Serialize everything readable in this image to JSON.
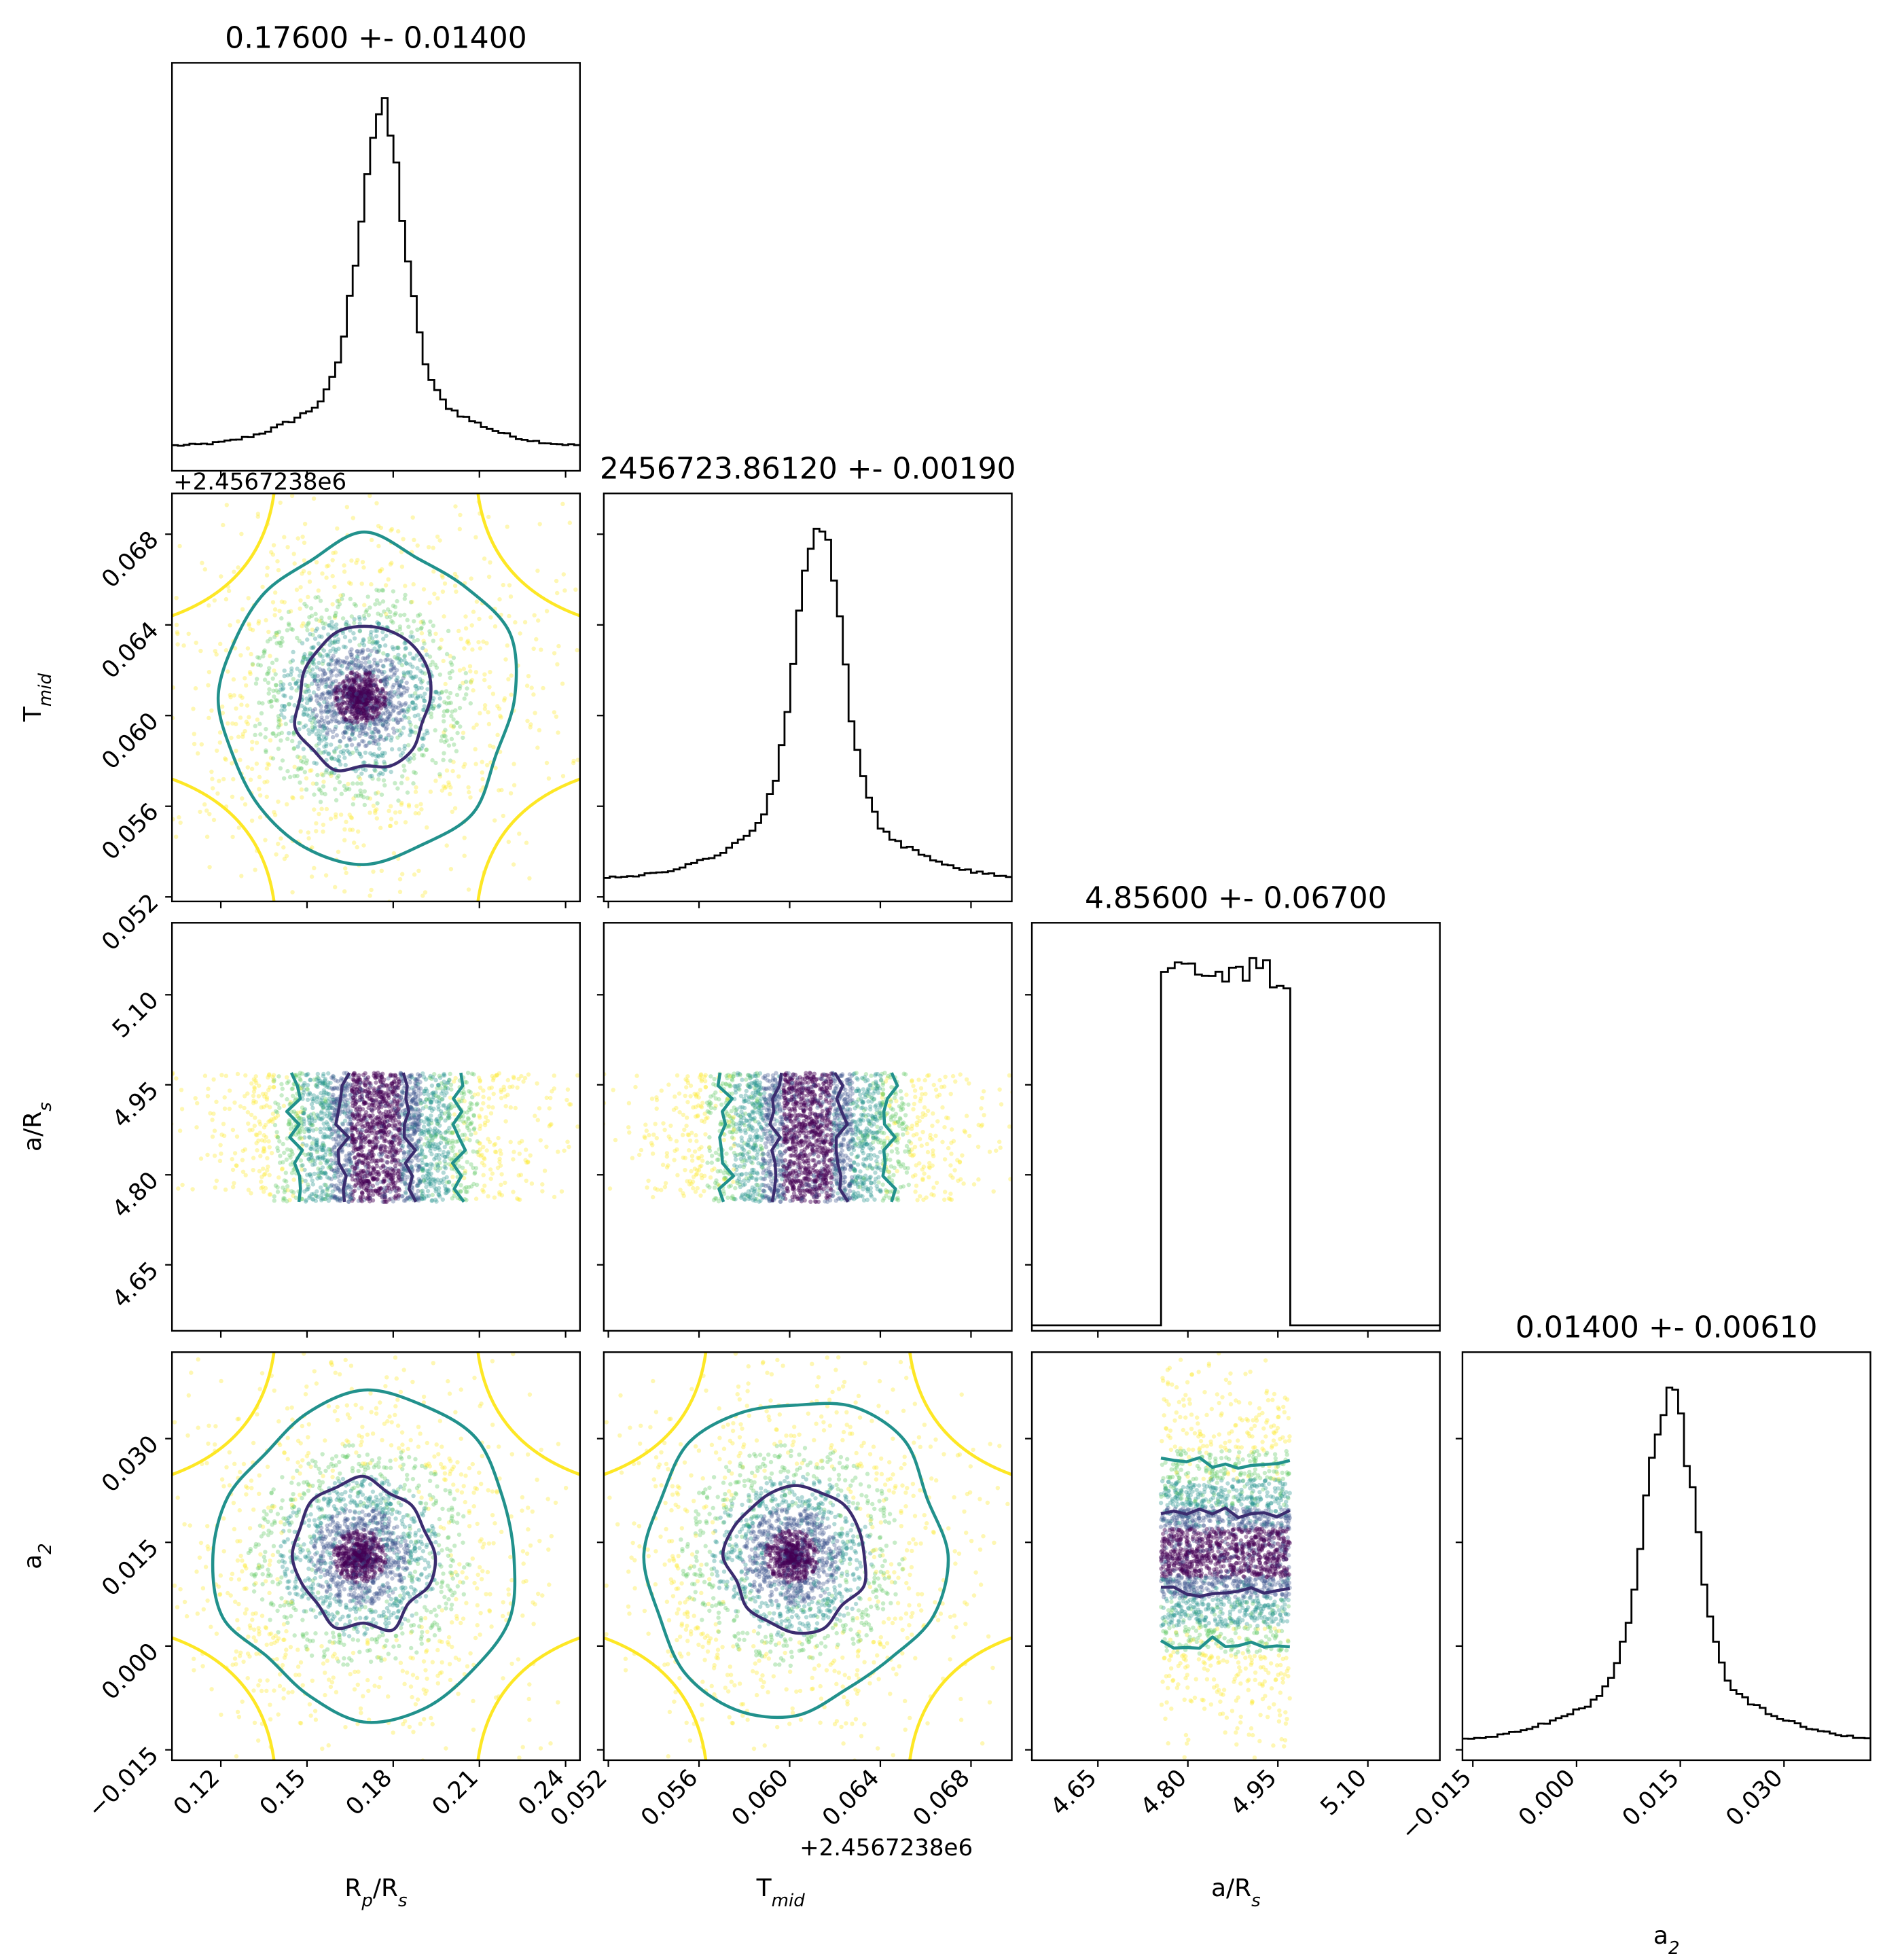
{
  "chart_data": {
    "type": "scatter",
    "subtype": "corner",
    "parameters": [
      {
        "key": "rp",
        "label_main": "R",
        "label_sub1": "p",
        "label_mid": "/R",
        "label_sub2": "s",
        "range": [
          0.103,
          0.245
        ],
        "ticks": [
          0.12,
          0.15,
          0.18,
          0.21,
          0.24
        ],
        "tick_labels": [
          "0.12",
          "0.15",
          "0.18",
          "0.21",
          "0.24"
        ]
      },
      {
        "key": "tmid",
        "label_main": "T",
        "label_sub1": "mid",
        "label_mid": "",
        "label_sub2": "",
        "range": [
          0.0518,
          0.0698
        ],
        "ticks": [
          0.052,
          0.056,
          0.06,
          0.064,
          0.068
        ],
        "tick_labels": [
          "0.052",
          "0.056",
          "0.060",
          "0.064",
          "0.068"
        ]
      },
      {
        "key": "ars",
        "label_main": "a/R",
        "label_sub1": "s",
        "label_mid": "",
        "label_sub2": "",
        "range": [
          4.54,
          5.22
        ],
        "ticks": [
          4.65,
          4.8,
          4.95,
          5.1
        ],
        "tick_labels": [
          "4.65",
          "4.80",
          "4.95",
          "5.10"
        ]
      },
      {
        "key": "a2",
        "label_main": "a",
        "label_sub1": "2",
        "label_mid": "",
        "label_sub2": "",
        "range": [
          -0.0165,
          0.0425
        ],
        "ticks": [
          -0.015,
          0.0,
          0.015,
          0.03
        ],
        "tick_labels": [
          "−0.015",
          "0.000",
          "0.015",
          "0.030"
        ]
      }
    ],
    "titles": [
      "0.17600 +- 0.01400",
      "2456723.86120 +- 0.00190",
      "4.85600 +- 0.06700",
      "0.01400 +- 0.00610"
    ],
    "offset_label": "+2.4567238e6",
    "colors": {
      "contour_inner": "#3b2c6f",
      "contour_middle": "#21918c",
      "contour_outer": "#fde725",
      "points_core": "#440154",
      "points_mid": "#3b528b",
      "points_teal": "#21918c",
      "points_green": "#5ec962",
      "points_yellow": "#fde725"
    },
    "marginals": [
      {
        "name": "rp",
        "peak": 0.176,
        "width": 0.0075,
        "tail_level": 0.07
      },
      {
        "name": "tmid",
        "peak": 0.0613,
        "width": 0.001,
        "tail_level": 0.06
      },
      {
        "name": "ars",
        "low": 4.755,
        "high": 4.97,
        "plateau": 0.85
      },
      {
        "name": "a2",
        "peak": 0.0135,
        "width": 0.0035,
        "tail_level": 0.05
      }
    ]
  }
}
